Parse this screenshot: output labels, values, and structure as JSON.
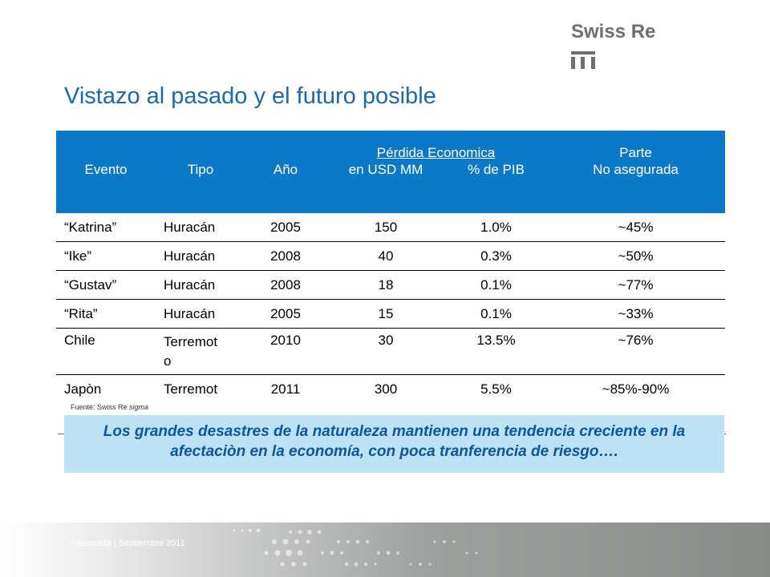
{
  "logo": {
    "text": "Swiss Re",
    "mark": "swiss-re-cross-mark"
  },
  "title": "Vistazo al pasado y el futuro posible",
  "table": {
    "group_header": "Pérdida Economica",
    "parte_header": "Parte",
    "columns": [
      "Evento",
      "Tipo",
      "Año",
      "en USD MM",
      "% de PIB",
      "No asegurada"
    ],
    "rows": [
      [
        "“Katrina”",
        "Huracán",
        "2005",
        "150",
        "1.0%",
        "~45%"
      ],
      [
        "“Ike”",
        "Huracán",
        "2008",
        "40",
        "0.3%",
        "~50%"
      ],
      [
        "“Gustav”",
        "Huracán",
        "2008",
        "18",
        "0.1%",
        "~77%"
      ],
      [
        "“Rita”",
        "Huracán",
        "2005",
        "15",
        "0.1%",
        "~33%"
      ],
      [
        "Chile",
        "Terremoto",
        "2010",
        "30",
        "13.5%",
        "~76%"
      ],
      [
        "Japòn",
        "Terremot",
        "2011",
        "300",
        "5.5%",
        "~85%-90%"
      ]
    ]
  },
  "source": {
    "prefix": "Fuente: Swiss Re ",
    "italic": "sigma"
  },
  "callout": "Los grandes desastres de la naturaleza mantienen una tendencia creciente en la afectaciòn en la economía, con poca tranferencia de riesgo….",
  "footer": "Fasecolda | Septiembre 2011",
  "colors": {
    "header_bg": "#0c78c8",
    "title": "#1a6aa8",
    "callout_bg": "#bde2f5",
    "callout_text": "#0e55a0"
  }
}
